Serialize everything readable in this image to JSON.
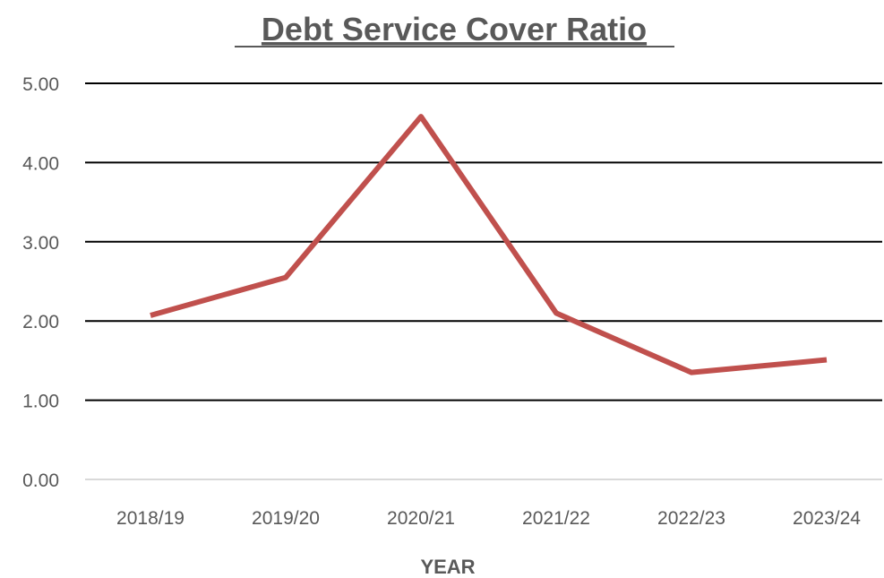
{
  "chart_data": {
    "type": "line",
    "title": "Debt Service Cover Ratio",
    "xlabel": "YEAR",
    "ylabel": "",
    "categories": [
      "2018/19",
      "2019/20",
      "2020/21",
      "2021/22",
      "2022/23",
      "2023/24"
    ],
    "series": [
      {
        "values": [
          2.07,
          2.55,
          4.58,
          2.1,
          1.35,
          1.51
        ],
        "color": "#c0504d"
      }
    ],
    "ylim": [
      0,
      5
    ],
    "yticks": [
      "0.00",
      "1.00",
      "2.00",
      "3.00",
      "4.00",
      "5.00"
    ],
    "grid": true,
    "legend": "none"
  }
}
